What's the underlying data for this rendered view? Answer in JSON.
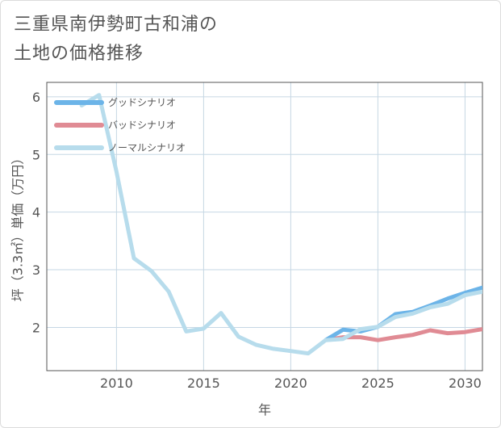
{
  "title_line1": "三重県南伊勢町古和浦の",
  "title_line2": "土地の価格推移",
  "chart_data": {
    "type": "line",
    "xlabel": "年",
    "ylabel": "坪（3.3㎡）単価（万円）",
    "xlim": [
      2006,
      2031
    ],
    "ylim": [
      1.25,
      6.25
    ],
    "xticks": [
      2010,
      2015,
      2020,
      2025,
      2030
    ],
    "yticks": [
      2,
      3,
      4,
      5,
      6
    ],
    "grid": true,
    "legend_position": "top-left",
    "series": [
      {
        "name": "グッドシナリオ",
        "color": "#6cb4e8",
        "x": [
          2022,
          2023,
          2024,
          2025,
          2026,
          2027,
          2028,
          2029,
          2030,
          2031
        ],
        "y": [
          1.78,
          1.96,
          1.93,
          2.01,
          2.23,
          2.27,
          2.38,
          2.5,
          2.6,
          2.69
        ]
      },
      {
        "name": "バッドシナリオ",
        "color": "#e08b94",
        "x": [
          2022,
          2023,
          2024,
          2025,
          2026,
          2027,
          2028,
          2029,
          2030,
          2031
        ],
        "y": [
          1.78,
          1.83,
          1.83,
          1.78,
          1.83,
          1.87,
          1.95,
          1.9,
          1.92,
          1.97
        ]
      },
      {
        "name": "ノーマルシナリオ",
        "color": "#b7dcec",
        "x": [
          2008,
          2009,
          2010,
          2011,
          2012,
          2013,
          2014,
          2015,
          2016,
          2017,
          2018,
          2019,
          2020,
          2021,
          2022,
          2023,
          2024,
          2025,
          2026,
          2027,
          2028,
          2029,
          2030,
          2031
        ],
        "y": [
          5.85,
          6.03,
          4.7,
          3.2,
          2.98,
          2.62,
          1.93,
          1.98,
          2.25,
          1.84,
          1.7,
          1.63,
          1.59,
          1.55,
          1.78,
          1.8,
          1.97,
          2.01,
          2.18,
          2.24,
          2.35,
          2.41,
          2.56,
          2.62
        ]
      }
    ]
  }
}
